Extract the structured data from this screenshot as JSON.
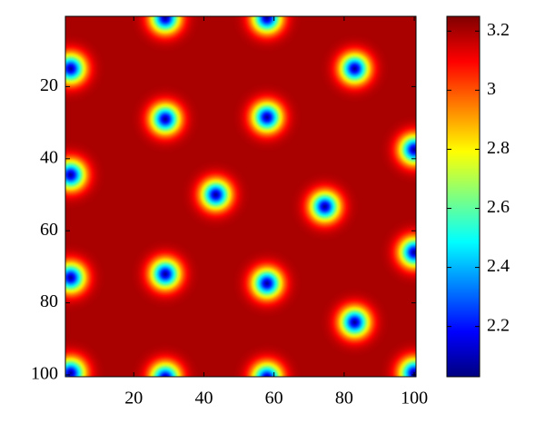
{
  "chart_data": {
    "type": "heatmap",
    "xlim": [
      0.5,
      100.5
    ],
    "ylim": [
      0.5,
      100.5
    ],
    "y_reversed": true,
    "xticks": [
      20,
      40,
      60,
      80,
      100
    ],
    "yticks": [
      20,
      40,
      60,
      80,
      100
    ],
    "colormap": "jet",
    "clim": [
      2.03,
      3.25
    ],
    "cticks": [
      2.2,
      2.4,
      2.6,
      2.8,
      3,
      3.2
    ],
    "background": 3.2,
    "spots": [
      {
        "x": 29,
        "y": 1,
        "value": 2.05
      },
      {
        "x": 58,
        "y": 1,
        "value": 2.05
      },
      {
        "x": 2,
        "y": 15,
        "value": 2.05
      },
      {
        "x": 83,
        "y": 15,
        "value": 2.05
      },
      {
        "x": 29,
        "y": 29,
        "value": 2.05
      },
      {
        "x": 58,
        "y": 28.5,
        "value": 2.05
      },
      {
        "x": 100,
        "y": 37.5,
        "value": 2.05
      },
      {
        "x": 2,
        "y": 44.5,
        "value": 2.05
      },
      {
        "x": 43.4,
        "y": 50,
        "value": 2.05
      },
      {
        "x": 74.5,
        "y": 53.3,
        "value": 2.05
      },
      {
        "x": 100,
        "y": 66,
        "value": 2.05
      },
      {
        "x": 2,
        "y": 73,
        "value": 2.05
      },
      {
        "x": 29,
        "y": 72,
        "value": 2.05
      },
      {
        "x": 58,
        "y": 74.6,
        "value": 2.05
      },
      {
        "x": 83,
        "y": 85.4,
        "value": 2.05
      },
      {
        "x": 2,
        "y": 99.5,
        "value": 2.05
      },
      {
        "x": 29,
        "y": 100.8,
        "value": 2.05
      },
      {
        "x": 58,
        "y": 100.8,
        "value": 2.05
      },
      {
        "x": 100,
        "y": 99.5,
        "value": 2.05
      }
    ]
  }
}
